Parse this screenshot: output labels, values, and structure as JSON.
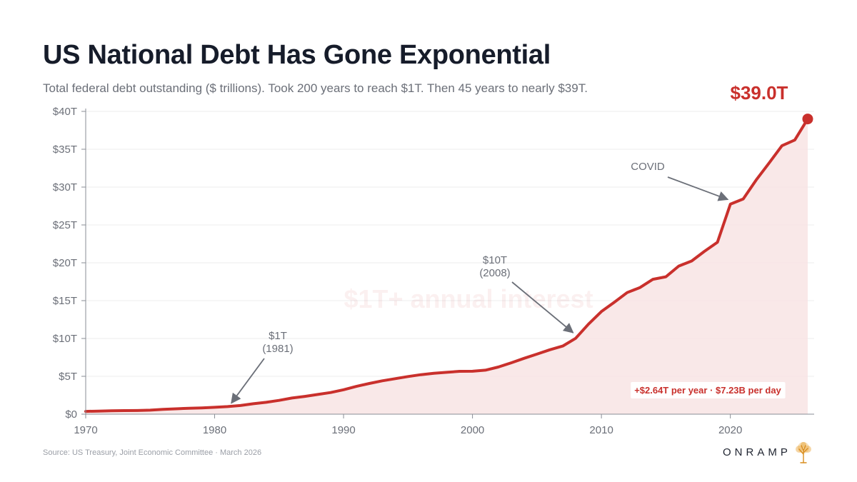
{
  "chart_data": {
    "type": "area",
    "title": "US National Debt Has Gone Exponential",
    "subtitle": "Total federal debt outstanding ($ trillions). Took 200 years to reach $1T. Then 45 years to nearly $39T.",
    "xlabel": "",
    "ylabel": "",
    "xlim": [
      1970,
      2026.5
    ],
    "ylim": [
      0,
      40
    ],
    "x_ticks": [
      1970,
      1980,
      1990,
      2000,
      2010,
      2020
    ],
    "x_tick_labels": [
      "1970",
      "1980",
      "1990",
      "2000",
      "2010",
      "2020"
    ],
    "y_ticks": [
      0,
      5,
      10,
      15,
      20,
      25,
      30,
      35,
      40
    ],
    "y_tick_labels": [
      "$0",
      "$5T",
      "$10T",
      "$15T",
      "$20T",
      "$25T",
      "$30T",
      "$35T",
      "$40T"
    ],
    "grid": true,
    "series": [
      {
        "name": "Total federal debt outstanding",
        "color": "#c9302c",
        "fill": "#f8e4e4",
        "x": [
          1970,
          1971,
          1972,
          1973,
          1974,
          1975,
          1976,
          1977,
          1978,
          1979,
          1980,
          1981,
          1982,
          1983,
          1984,
          1985,
          1986,
          1987,
          1988,
          1989,
          1990,
          1991,
          1992,
          1993,
          1994,
          1995,
          1996,
          1997,
          1998,
          1999,
          2000,
          2001,
          2002,
          2003,
          2004,
          2005,
          2006,
          2007,
          2008,
          2009,
          2010,
          2011,
          2012,
          2013,
          2014,
          2015,
          2016,
          2017,
          2018,
          2019,
          2020,
          2021,
          2022,
          2023,
          2024,
          2025,
          2026
        ],
        "values": [
          0.37,
          0.41,
          0.44,
          0.47,
          0.48,
          0.53,
          0.63,
          0.71,
          0.78,
          0.83,
          0.91,
          1.0,
          1.14,
          1.38,
          1.57,
          1.82,
          2.13,
          2.35,
          2.6,
          2.86,
          3.23,
          3.67,
          4.06,
          4.41,
          4.69,
          4.97,
          5.22,
          5.41,
          5.53,
          5.66,
          5.67,
          5.81,
          6.23,
          6.78,
          7.38,
          7.93,
          8.51,
          9.0,
          10.02,
          11.91,
          13.56,
          14.79,
          16.07,
          16.74,
          17.82,
          18.15,
          19.57,
          20.24,
          21.52,
          22.72,
          27.75,
          28.43,
          30.93,
          33.17,
          35.46,
          36.22,
          39.0
        ]
      }
    ],
    "annotations": [
      {
        "id": "one_t",
        "label": "$1T",
        "sub": "(1981)",
        "x": 1981.3,
        "y": 0.9
      },
      {
        "id": "ten_t",
        "label": "$10T",
        "sub": "(2008)",
        "x": 2007.8,
        "y": 10.2
      },
      {
        "id": "covid",
        "label": "COVID",
        "x": 2019.8,
        "y": 27.8
      }
    ],
    "endpoint": {
      "x": 2026,
      "y": 39.0,
      "label": "$39.0T"
    },
    "watermark": "$1T+ annual interest",
    "rate_note": "+$2.64T per year · $7.23B per day",
    "source": "Source: US Treasury, Joint Economic Committee · March 2026",
    "brand": "ONRAMP"
  }
}
